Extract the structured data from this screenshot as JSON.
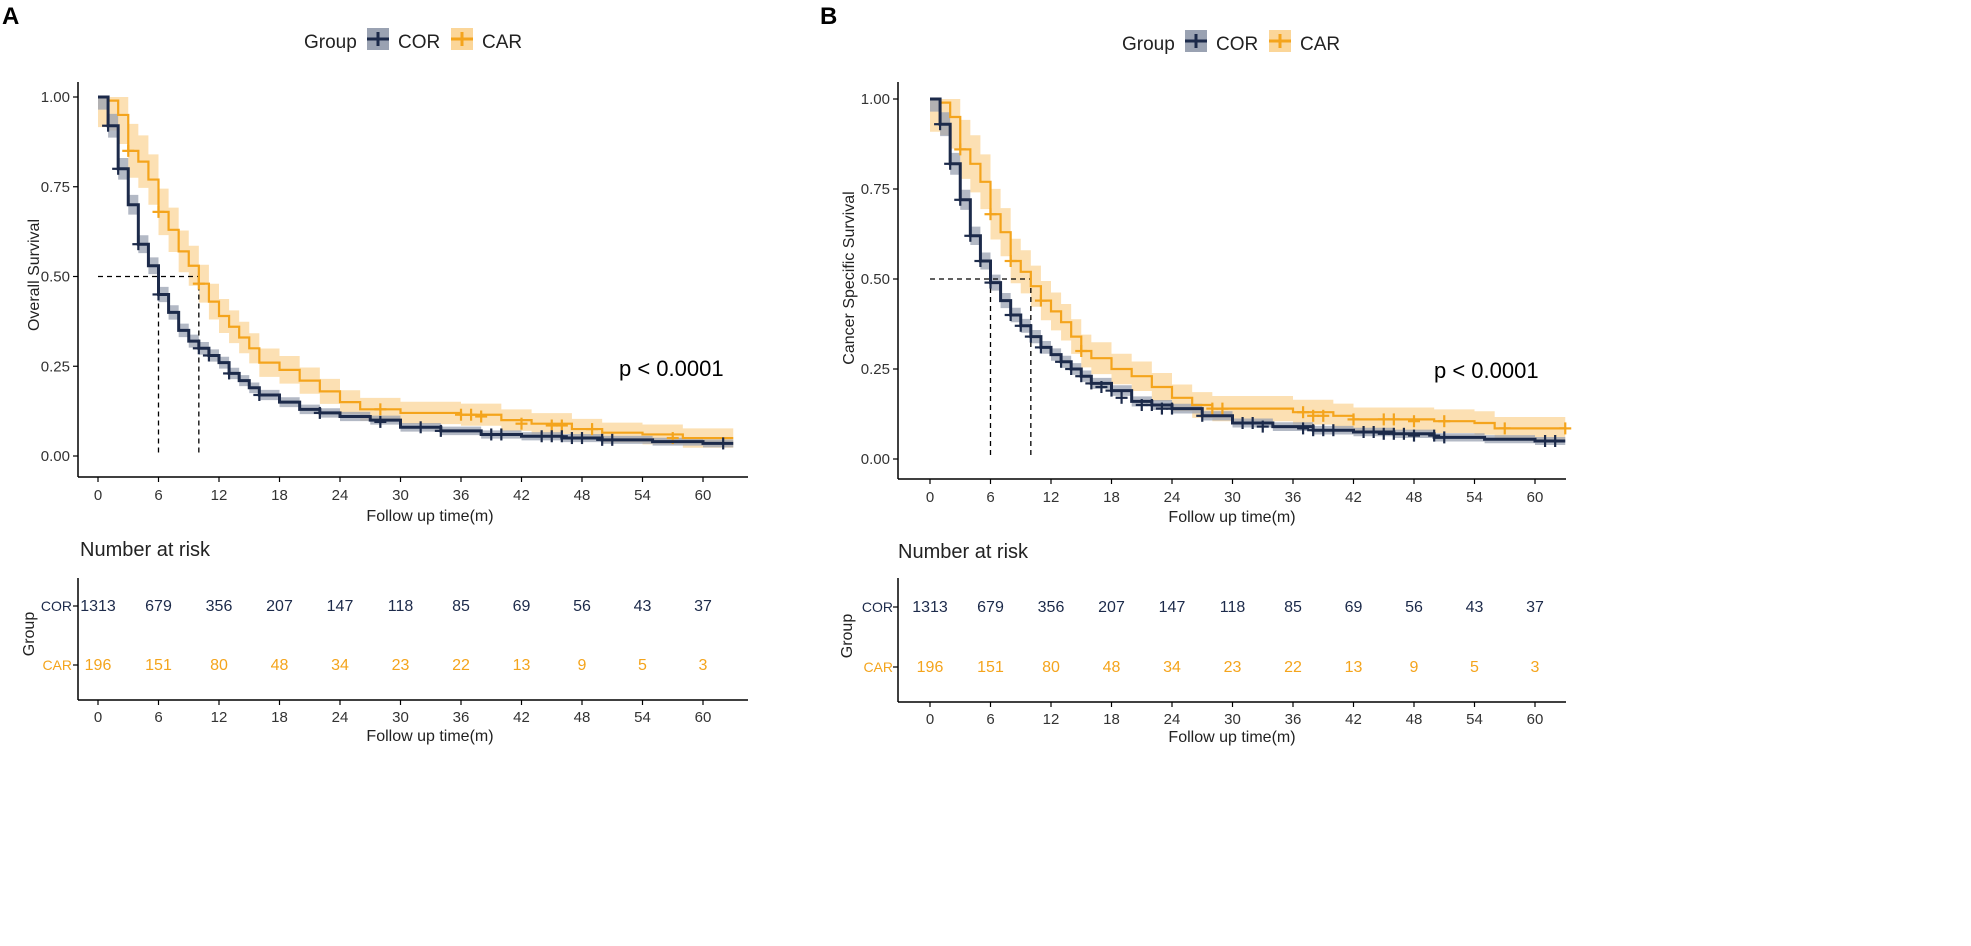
{
  "figure": {
    "legend_title": "Group",
    "risk_title": "Number at risk",
    "risk_ylabel": "Group",
    "xlabel": "Follow up time(m)"
  },
  "colors": {
    "COR": "#1c2a4a",
    "CAR": "#f4a41c",
    "COR_band": "#9aa2b2",
    "CAR_band": "#fbd699"
  },
  "chart_data": [
    {
      "panel_letter": "A",
      "type": "line",
      "subtype": "kaplan-meier",
      "title": "",
      "xlabel": "Follow up time(m)",
      "ylabel": "Overall Survival",
      "xlim": [
        0,
        63
      ],
      "ylim": [
        0,
        1
      ],
      "x_ticks": [
        0,
        6,
        12,
        18,
        24,
        30,
        36,
        42,
        48,
        54,
        60
      ],
      "y_ticks": [
        "0.00",
        "0.25",
        "0.50",
        "0.75",
        "1.00"
      ],
      "pvalue": "p < 0.0001",
      "legend": {
        "title": "Group",
        "entries": [
          "COR",
          "CAR"
        ]
      },
      "median_survival": {
        "COR": 6,
        "CAR": 10
      },
      "series": [
        {
          "name": "COR",
          "points": [
            [
              0,
              1.0
            ],
            [
              1,
              0.92
            ],
            [
              2,
              0.8
            ],
            [
              3,
              0.7
            ],
            [
              4,
              0.59
            ],
            [
              5,
              0.53
            ],
            [
              6,
              0.45
            ],
            [
              7,
              0.4
            ],
            [
              8,
              0.35
            ],
            [
              9,
              0.32
            ],
            [
              10,
              0.3
            ],
            [
              11,
              0.28
            ],
            [
              12,
              0.26
            ],
            [
              13,
              0.23
            ],
            [
              14,
              0.21
            ],
            [
              15,
              0.19
            ],
            [
              16,
              0.17
            ],
            [
              18,
              0.15
            ],
            [
              20,
              0.13
            ],
            [
              22,
              0.12
            ],
            [
              24,
              0.11
            ],
            [
              27,
              0.1
            ],
            [
              30,
              0.08
            ],
            [
              34,
              0.07
            ],
            [
              38,
              0.06
            ],
            [
              42,
              0.055
            ],
            [
              46,
              0.05
            ],
            [
              50,
              0.045
            ],
            [
              55,
              0.04
            ],
            [
              60,
              0.035
            ],
            [
              63,
              0.035
            ]
          ],
          "ci_half_width": 0.025,
          "censor": [
            [
              1,
              0.92
            ],
            [
              2,
              0.8
            ],
            [
              4,
              0.59
            ],
            [
              6,
              0.45
            ],
            [
              10,
              0.3
            ],
            [
              11,
              0.28
            ],
            [
              13,
              0.23
            ],
            [
              16,
              0.17
            ],
            [
              22,
              0.12
            ],
            [
              28,
              0.095
            ],
            [
              32,
              0.08
            ],
            [
              34,
              0.07
            ],
            [
              39,
              0.06
            ],
            [
              40,
              0.06
            ],
            [
              44,
              0.055
            ],
            [
              45,
              0.055
            ],
            [
              46,
              0.055
            ],
            [
              47,
              0.05
            ],
            [
              48,
              0.05
            ],
            [
              50,
              0.045
            ],
            [
              51,
              0.045
            ],
            [
              62,
              0.035
            ]
          ]
        },
        {
          "name": "CAR",
          "points": [
            [
              0,
              1.0
            ],
            [
              1,
              0.99
            ],
            [
              2,
              0.95
            ],
            [
              3,
              0.85
            ],
            [
              4,
              0.82
            ],
            [
              5,
              0.77
            ],
            [
              6,
              0.68
            ],
            [
              7,
              0.63
            ],
            [
              8,
              0.57
            ],
            [
              9,
              0.53
            ],
            [
              10,
              0.48
            ],
            [
              11,
              0.43
            ],
            [
              12,
              0.39
            ],
            [
              13,
              0.36
            ],
            [
              14,
              0.33
            ],
            [
              15,
              0.3
            ],
            [
              16,
              0.26
            ],
            [
              18,
              0.24
            ],
            [
              20,
              0.21
            ],
            [
              22,
              0.18
            ],
            [
              24,
              0.15
            ],
            [
              26,
              0.13
            ],
            [
              30,
              0.12
            ],
            [
              36,
              0.115
            ],
            [
              40,
              0.1
            ],
            [
              43,
              0.09
            ],
            [
              47,
              0.075
            ],
            [
              50,
              0.065
            ],
            [
              54,
              0.06
            ],
            [
              58,
              0.05
            ],
            [
              63,
              0.05
            ]
          ],
          "ci_half_width": 0.06,
          "censor": [
            [
              3,
              0.85
            ],
            [
              6,
              0.68
            ],
            [
              10,
              0.48
            ],
            [
              28,
              0.13
            ],
            [
              36,
              0.115
            ],
            [
              37,
              0.115
            ],
            [
              38,
              0.11
            ],
            [
              42,
              0.09
            ],
            [
              45,
              0.085
            ],
            [
              46,
              0.085
            ],
            [
              49,
              0.075
            ],
            [
              57,
              0.05
            ]
          ]
        }
      ],
      "risk_table": {
        "times": [
          0,
          6,
          12,
          18,
          24,
          30,
          36,
          42,
          48,
          54,
          60
        ],
        "rows": [
          {
            "group": "COR",
            "values": [
              1313,
              679,
              356,
              207,
              147,
              118,
              85,
              69,
              56,
              43,
              37
            ]
          },
          {
            "group": "CAR",
            "values": [
              196,
              151,
              80,
              48,
              34,
              23,
              22,
              13,
              9,
              5,
              3
            ]
          }
        ]
      }
    },
    {
      "panel_letter": "B",
      "type": "line",
      "subtype": "kaplan-meier",
      "title": "",
      "xlabel": "Follow up time(m)",
      "ylabel": "Cancer Specific Survival",
      "xlim": [
        0,
        63
      ],
      "ylim": [
        0,
        1
      ],
      "x_ticks": [
        0,
        6,
        12,
        18,
        24,
        30,
        36,
        42,
        48,
        54,
        60
      ],
      "y_ticks": [
        "0.00",
        "0.25",
        "0.50",
        "0.75",
        "1.00"
      ],
      "pvalue": "p < 0.0001",
      "legend": {
        "title": "Group",
        "entries": [
          "COR",
          "CAR"
        ]
      },
      "median_survival": {
        "COR": 6,
        "CAR": 10
      },
      "series": [
        {
          "name": "COR",
          "points": [
            [
              0,
              1.0
            ],
            [
              1,
              0.93
            ],
            [
              2,
              0.82
            ],
            [
              3,
              0.72
            ],
            [
              4,
              0.62
            ],
            [
              5,
              0.55
            ],
            [
              6,
              0.49
            ],
            [
              7,
              0.44
            ],
            [
              8,
              0.4
            ],
            [
              9,
              0.37
            ],
            [
              10,
              0.34
            ],
            [
              11,
              0.31
            ],
            [
              12,
              0.29
            ],
            [
              13,
              0.27
            ],
            [
              14,
              0.25
            ],
            [
              15,
              0.23
            ],
            [
              16,
              0.21
            ],
            [
              18,
              0.19
            ],
            [
              20,
              0.16
            ],
            [
              22,
              0.15
            ],
            [
              24,
              0.14
            ],
            [
              27,
              0.12
            ],
            [
              30,
              0.1
            ],
            [
              34,
              0.09
            ],
            [
              38,
              0.08
            ],
            [
              42,
              0.075
            ],
            [
              46,
              0.07
            ],
            [
              50,
              0.06
            ],
            [
              55,
              0.055
            ],
            [
              60,
              0.05
            ],
            [
              63,
              0.05
            ]
          ],
          "ci_half_width": 0.025,
          "censor": [
            [
              1,
              0.93
            ],
            [
              2,
              0.82
            ],
            [
              3,
              0.72
            ],
            [
              4,
              0.62
            ],
            [
              5,
              0.55
            ],
            [
              6,
              0.49
            ],
            [
              8,
              0.4
            ],
            [
              9,
              0.37
            ],
            [
              10,
              0.34
            ],
            [
              11,
              0.31
            ],
            [
              13,
              0.27
            ],
            [
              14,
              0.25
            ],
            [
              15,
              0.23
            ],
            [
              16,
              0.21
            ],
            [
              17,
              0.2
            ],
            [
              18,
              0.19
            ],
            [
              19,
              0.17
            ],
            [
              21,
              0.15
            ],
            [
              22,
              0.15
            ],
            [
              23,
              0.14
            ],
            [
              24,
              0.14
            ],
            [
              27,
              0.12
            ],
            [
              31,
              0.1
            ],
            [
              32,
              0.1
            ],
            [
              33,
              0.09
            ],
            [
              37,
              0.085
            ],
            [
              38,
              0.08
            ],
            [
              39,
              0.08
            ],
            [
              40,
              0.08
            ],
            [
              43,
              0.075
            ],
            [
              44,
              0.075
            ],
            [
              45,
              0.07
            ],
            [
              46,
              0.07
            ],
            [
              47,
              0.07
            ],
            [
              48,
              0.065
            ],
            [
              50,
              0.065
            ],
            [
              51,
              0.06
            ],
            [
              61,
              0.05
            ],
            [
              62,
              0.05
            ]
          ]
        },
        {
          "name": "CAR",
          "points": [
            [
              0,
              1.0
            ],
            [
              1,
              0.99
            ],
            [
              2,
              0.95
            ],
            [
              3,
              0.86
            ],
            [
              4,
              0.82
            ],
            [
              5,
              0.77
            ],
            [
              6,
              0.68
            ],
            [
              7,
              0.63
            ],
            [
              8,
              0.55
            ],
            [
              9,
              0.52
            ],
            [
              10,
              0.48
            ],
            [
              11,
              0.44
            ],
            [
              12,
              0.41
            ],
            [
              13,
              0.38
            ],
            [
              14,
              0.34
            ],
            [
              15,
              0.3
            ],
            [
              16,
              0.28
            ],
            [
              18,
              0.25
            ],
            [
              20,
              0.23
            ],
            [
              22,
              0.2
            ],
            [
              24,
              0.17
            ],
            [
              26,
              0.15
            ],
            [
              28,
              0.14
            ],
            [
              30,
              0.14
            ],
            [
              36,
              0.13
            ],
            [
              40,
              0.12
            ],
            [
              42,
              0.11
            ],
            [
              46,
              0.11
            ],
            [
              50,
              0.105
            ],
            [
              54,
              0.1
            ],
            [
              56,
              0.085
            ],
            [
              63,
              0.085
            ]
          ],
          "ci_half_width": 0.065,
          "censor": [
            [
              3,
              0.86
            ],
            [
              6,
              0.68
            ],
            [
              8,
              0.55
            ],
            [
              11,
              0.44
            ],
            [
              15,
              0.3
            ],
            [
              28,
              0.14
            ],
            [
              29,
              0.14
            ],
            [
              37,
              0.13
            ],
            [
              38,
              0.12
            ],
            [
              39,
              0.12
            ],
            [
              42,
              0.11
            ],
            [
              45,
              0.11
            ],
            [
              46,
              0.11
            ],
            [
              48,
              0.105
            ],
            [
              51,
              0.105
            ],
            [
              57,
              0.085
            ],
            [
              63,
              0.085
            ]
          ]
        }
      ],
      "risk_table": {
        "times": [
          0,
          6,
          12,
          18,
          24,
          30,
          36,
          42,
          48,
          54,
          60
        ],
        "rows": [
          {
            "group": "COR",
            "values": [
              1313,
              679,
              356,
              207,
              147,
              118,
              85,
              69,
              56,
              43,
              37
            ]
          },
          {
            "group": "CAR",
            "values": [
              196,
              151,
              80,
              48,
              34,
              23,
              22,
              13,
              9,
              5,
              3
            ]
          }
        ]
      }
    }
  ]
}
